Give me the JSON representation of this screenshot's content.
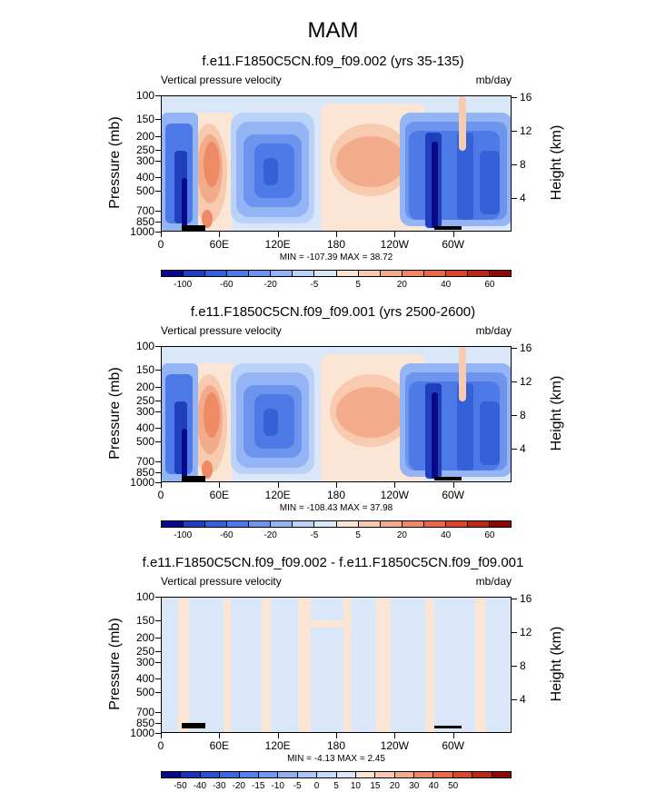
{
  "page": {
    "title": "MAM"
  },
  "panels": [
    {
      "title": "f.e11.F1850C5CN.f09_f09.002 (yrs 35-135)",
      "subtitle_left": "Vertical pressure velocity",
      "subtitle_right": "mb/day",
      "stats": "MIN = -107.39  MAX =  38.72",
      "colorbar": {
        "colors": [
          "#08088a",
          "#1f3fbf",
          "#3460d8",
          "#4d7ae6",
          "#6e95ee",
          "#94b4f5",
          "#bad2f8",
          "#dae7f8",
          "#fbe6d6",
          "#f8cbb0",
          "#f3ac8b",
          "#ef8a66",
          "#e86a45",
          "#d94727",
          "#b72b16",
          "#8a0a06"
        ],
        "labels": [
          "-100",
          "-60",
          "-20",
          "-5",
          "5",
          "20",
          "40",
          "60"
        ]
      }
    },
    {
      "title": "f.e11.F1850C5CN.f09_f09.001 (yrs 2500-2600)",
      "subtitle_left": "Vertical pressure velocity",
      "subtitle_right": "mb/day",
      "stats": "MIN = -108.43  MAX =  37.98",
      "colorbar": {
        "colors": [
          "#08088a",
          "#1f3fbf",
          "#3460d8",
          "#4d7ae6",
          "#6e95ee",
          "#94b4f5",
          "#bad2f8",
          "#dae7f8",
          "#fbe6d6",
          "#f8cbb0",
          "#f3ac8b",
          "#ef8a66",
          "#e86a45",
          "#d94727",
          "#b72b16",
          "#8a0a06"
        ],
        "labels": [
          "-100",
          "-60",
          "-20",
          "-5",
          "5",
          "20",
          "40",
          "60"
        ]
      }
    },
    {
      "title": "f.e11.F1850C5CN.f09_f09.002 - f.e11.F1850C5CN.f09_f09.001",
      "subtitle_left": "Vertical pressure velocity",
      "subtitle_right": "mb/day",
      "stats": "MIN = -4.13  MAX =  2.45",
      "colorbar": {
        "colors": [
          "#08088a",
          "#1a32b4",
          "#2a4fcf",
          "#3d69df",
          "#5683e9",
          "#7299ef",
          "#8fb1f4",
          "#abc6f7",
          "#c8daf9",
          "#dce8f8",
          "#fbe6d6",
          "#f8cbb0",
          "#f3ac8b",
          "#ef8a66",
          "#e86a45",
          "#d94727",
          "#b72b16",
          "#8a0a06"
        ],
        "labels": [
          "-50",
          "-40",
          "-30",
          "-20",
          "-15",
          "-10",
          "-5",
          "0",
          "5",
          "10",
          "15",
          "20",
          "30",
          "40",
          "50"
        ]
      }
    }
  ],
  "axes": {
    "y_label": "Pressure (mb)",
    "y2_label": "Height (km)",
    "pressure_ticks": [
      "100",
      "150",
      "200",
      "250",
      "300",
      "400",
      "500",
      "700",
      "850",
      "1000"
    ],
    "height_ticks": [
      "16",
      "12",
      "8",
      "4"
    ],
    "lon_ticks": [
      "0",
      "60E",
      "120E",
      "180",
      "120W",
      "60W"
    ]
  },
  "chart_data": [
    {
      "type": "heatmap",
      "title": "f.e11.F1850C5CN.f09_f09.002 (yrs 35-135)",
      "variable": "Vertical pressure velocity",
      "units": "mb/day",
      "x": "longitude",
      "y": "pressure (mb)",
      "ylim": [
        1000,
        100
      ],
      "min": -107.39,
      "max": 38.72,
      "levels": [
        -100,
        -80,
        -60,
        -40,
        -20,
        -10,
        -5,
        0,
        5,
        10,
        20,
        30,
        40,
        50,
        60
      ],
      "features": [
        {
          "lon": [
            0,
            30
          ],
          "sign": "negative",
          "peak": -100
        },
        {
          "lon": [
            35,
            60
          ],
          "sign": "positive",
          "peak": 20
        },
        {
          "lon": [
            75,
            160
          ],
          "sign": "negative",
          "peak": -60
        },
        {
          "lon": [
            175,
            260
          ],
          "sign": "positive",
          "peak": 20
        },
        {
          "lon": [
            275,
            360
          ],
          "sign": "negative",
          "peak": -100
        }
      ]
    },
    {
      "type": "heatmap",
      "title": "f.e11.F1850C5CN.f09_f09.001 (yrs 2500-2600)",
      "variable": "Vertical pressure velocity",
      "units": "mb/day",
      "x": "longitude",
      "y": "pressure (mb)",
      "ylim": [
        1000,
        100
      ],
      "min": -108.43,
      "max": 37.98,
      "levels": [
        -100,
        -80,
        -60,
        -40,
        -20,
        -10,
        -5,
        0,
        5,
        10,
        20,
        30,
        40,
        50,
        60
      ],
      "features": [
        {
          "lon": [
            0,
            30
          ],
          "sign": "negative",
          "peak": -100
        },
        {
          "lon": [
            35,
            60
          ],
          "sign": "positive",
          "peak": 20
        },
        {
          "lon": [
            75,
            160
          ],
          "sign": "negative",
          "peak": -60
        },
        {
          "lon": [
            175,
            260
          ],
          "sign": "positive",
          "peak": 20
        },
        {
          "lon": [
            275,
            360
          ],
          "sign": "negative",
          "peak": -100
        }
      ]
    },
    {
      "type": "heatmap",
      "title": "f.e11.F1850C5CN.f09_f09.002 - f.e11.F1850C5CN.f09_f09.001",
      "variable": "Vertical pressure velocity",
      "units": "mb/day",
      "x": "longitude",
      "y": "pressure (mb)",
      "ylim": [
        1000,
        100
      ],
      "min": -4.13,
      "max": 2.45,
      "levels": [
        -50,
        -40,
        -30,
        -20,
        -15,
        -10,
        -5,
        0,
        5,
        10,
        15,
        20,
        30,
        40,
        50
      ]
    }
  ]
}
